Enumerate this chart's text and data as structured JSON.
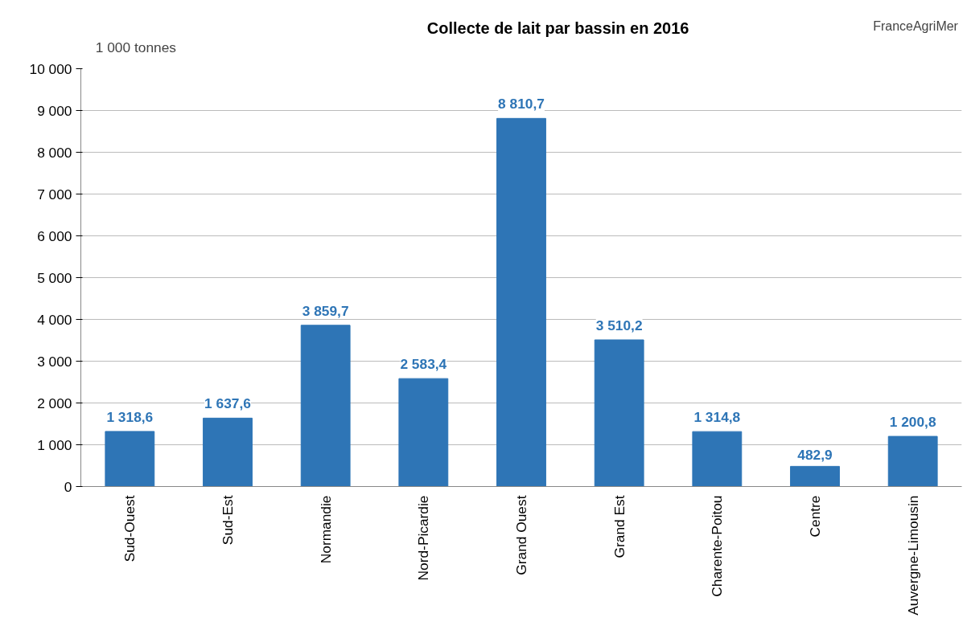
{
  "chart_data": {
    "type": "bar",
    "title": "Collecte de lait par bassin en 2016",
    "ylabel": "1 000 tonnes",
    "annotations": [
      "FranceAgriMer"
    ],
    "categories": [
      "Sud-Ouest",
      "Sud-Est",
      "Normandie",
      "Nord-Picardie",
      "Grand Ouest",
      "Grand Est",
      "Charente-Poitou",
      "Centre",
      "Auvergne-Limousin"
    ],
    "values": [
      1318.6,
      1637.6,
      3859.7,
      2583.4,
      8810.7,
      3510.2,
      1314.8,
      482.9,
      1200.8
    ],
    "value_labels": [
      "1 318,6",
      "1 637,6",
      "3 859,7",
      "2 583,4",
      "8 810,7",
      "3 510,2",
      "1 314,8",
      "482,9",
      "1 200,8"
    ],
    "color": "#2e75b6",
    "ylim": [
      0,
      10000
    ],
    "yticks": [
      0,
      {
        "value": 1000,
        "label": "1 000"
      },
      {
        "value": 2000,
        "label": "2 000"
      },
      {
        "value": 3000,
        "label": "3 000"
      },
      {
        "value": 4000,
        "label": "4 000"
      },
      {
        "value": 5000,
        "label": "5 000"
      },
      {
        "value": 6000,
        "label": "6 000"
      },
      {
        "value": 7000,
        "label": "7 000"
      },
      {
        "value": 8000,
        "label": "8 000"
      },
      {
        "value": 9000,
        "label": "9 000"
      },
      {
        "value": 10000,
        "label": "10 000"
      }
    ],
    "grid": "y"
  }
}
